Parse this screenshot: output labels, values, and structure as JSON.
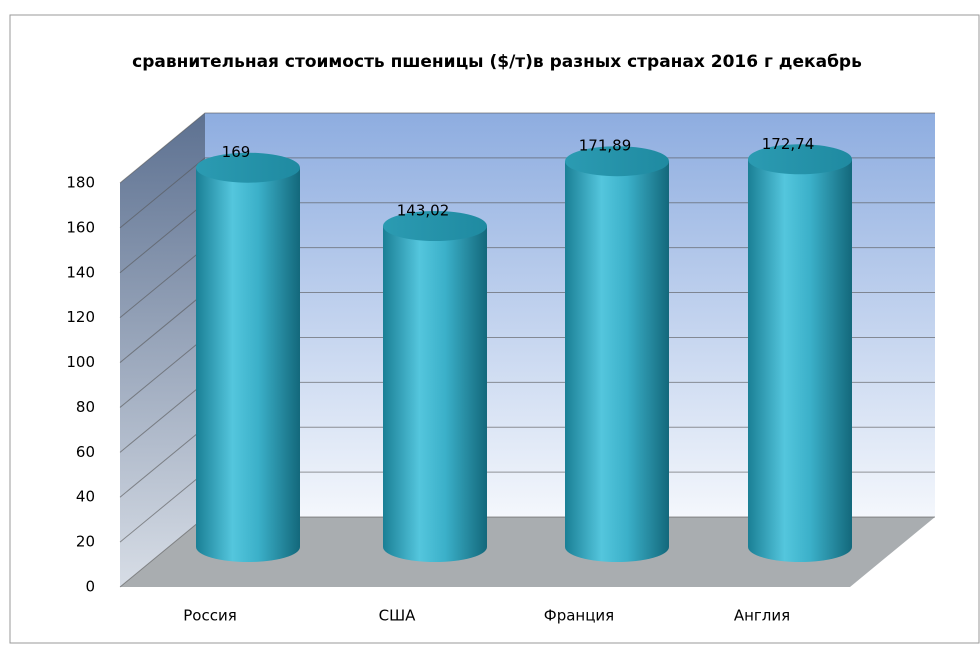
{
  "chart_data": {
    "type": "bar3d",
    "title": "сравнительная стоимость пшеницы ($/т)в разных странах 2016  г  декабрь",
    "categories": [
      "Россия",
      "США",
      "Франция",
      "Англия"
    ],
    "values": [
      169,
      143.02,
      171.89,
      172.74
    ],
    "value_labels": [
      "169",
      "143,02",
      "171,89",
      "172,74"
    ],
    "color": "#3fb3cc",
    "ylim": [
      0,
      180
    ],
    "yticks": [
      0,
      20,
      40,
      60,
      80,
      100,
      120,
      140,
      160,
      180
    ],
    "grid": true
  }
}
